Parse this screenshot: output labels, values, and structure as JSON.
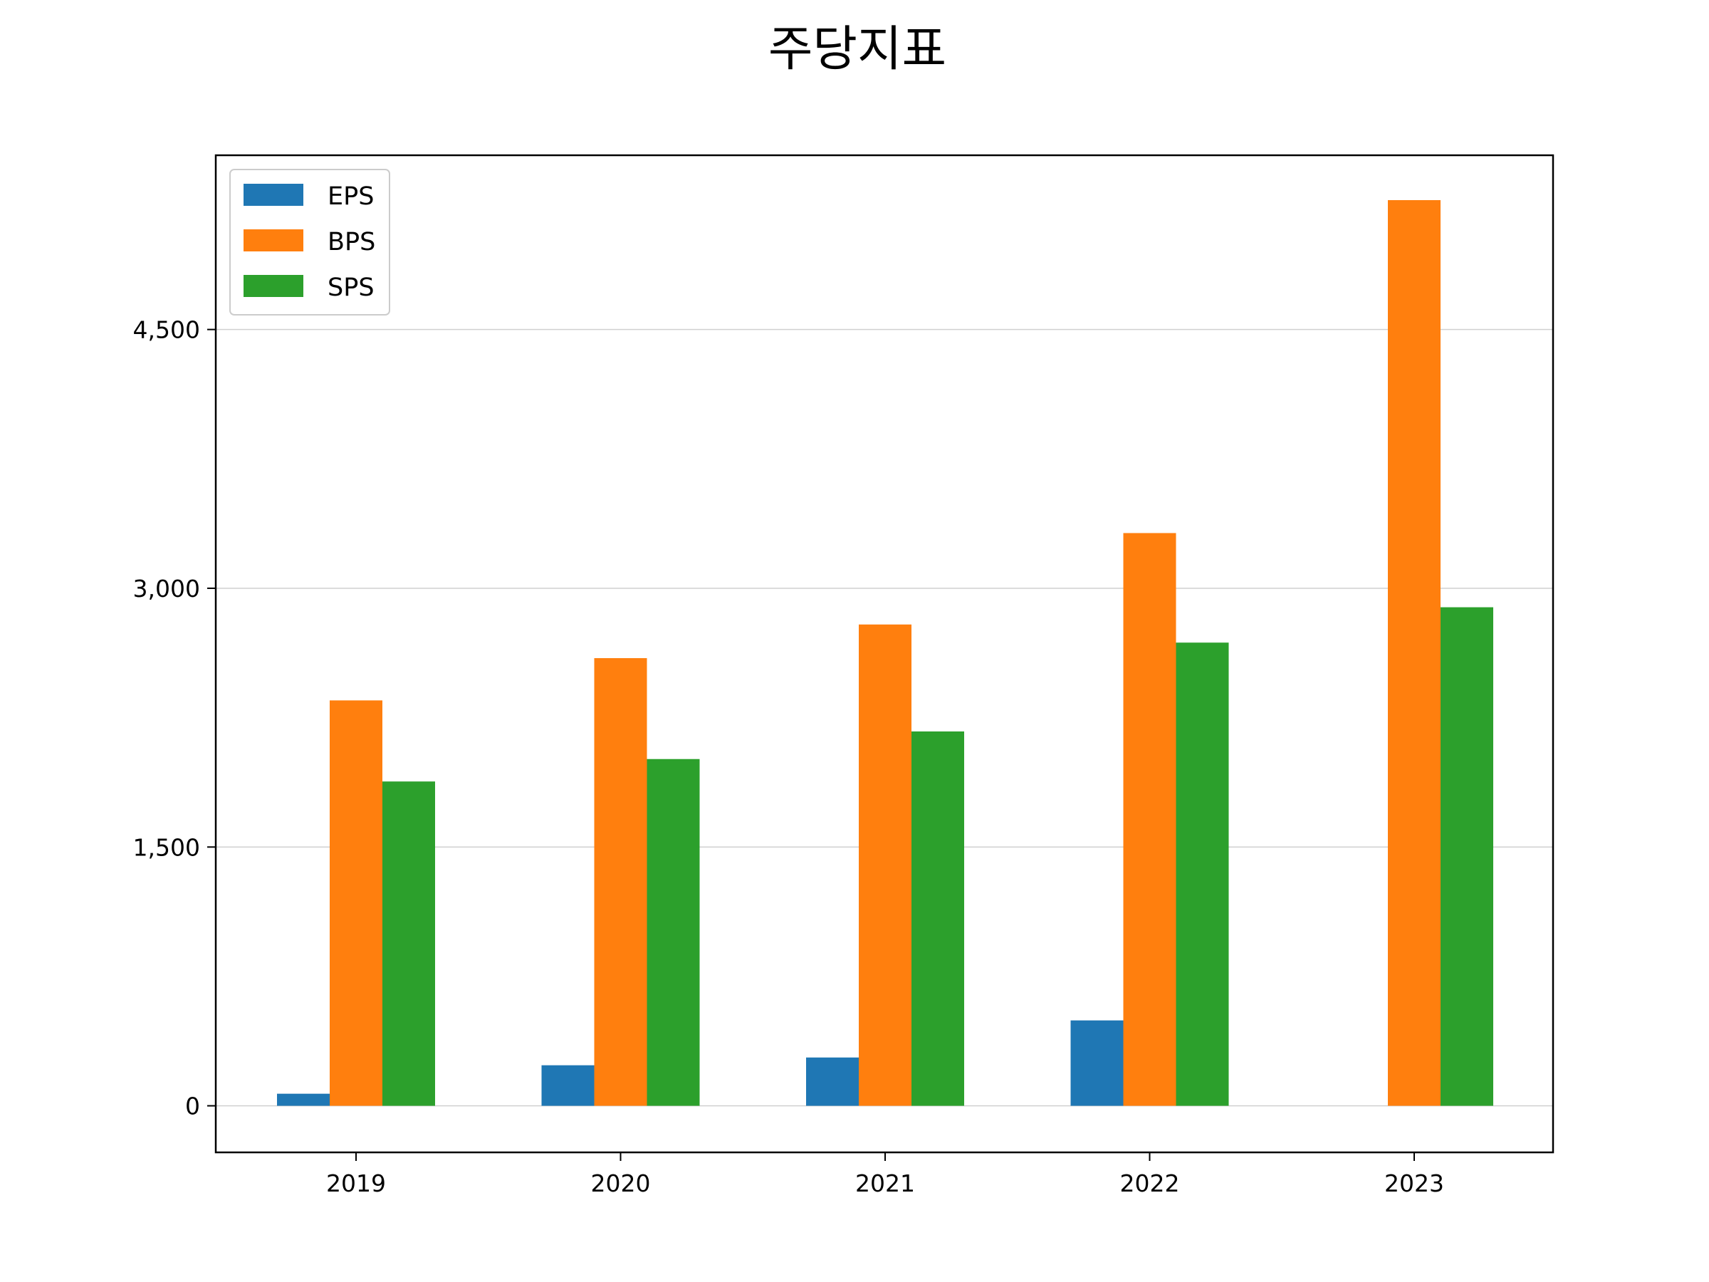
{
  "chart_data": {
    "type": "bar",
    "title": "주당지표",
    "xlabel": "",
    "ylabel": "",
    "categories": [
      "2019",
      "2020",
      "2021",
      "2022",
      "2023"
    ],
    "series": [
      {
        "name": "EPS",
        "color": "#1f77b4",
        "values": [
          70,
          235,
          280,
          495,
          0
        ]
      },
      {
        "name": "BPS",
        "color": "#ff7f0e",
        "values": [
          2350,
          2595,
          2790,
          3320,
          5250
        ]
      },
      {
        "name": "SPS",
        "color": "#2ca02c",
        "values": [
          1880,
          2010,
          2170,
          2685,
          2890
        ]
      }
    ],
    "yticks": [
      0,
      1500,
      3000,
      4500
    ],
    "ytick_labels": [
      "0",
      "1,500",
      "3,000",
      "4,500"
    ],
    "ylim": [
      -270,
      5510
    ],
    "grid": "y",
    "legend_position": "upper-left"
  }
}
